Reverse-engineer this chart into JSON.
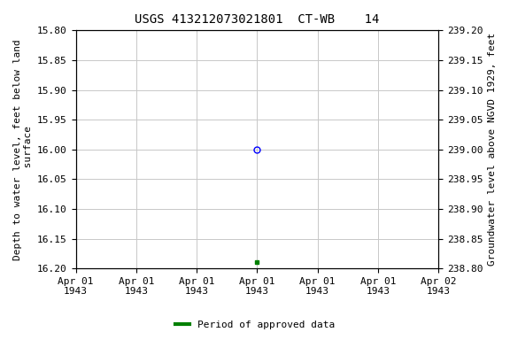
{
  "title": "USGS 413212073021801  CT-WB    14",
  "ylabel_left": "Depth to water level, feet below land\n surface",
  "ylabel_right": "Groundwater level above NGVD 1929, feet",
  "ylim_left": [
    15.8,
    16.2
  ],
  "ylim_right": [
    239.2,
    238.8
  ],
  "y_ticks_left": [
    15.8,
    15.85,
    15.9,
    15.95,
    16.0,
    16.05,
    16.1,
    16.15,
    16.2
  ],
  "y_ticks_right": [
    239.2,
    239.15,
    239.1,
    239.05,
    239.0,
    238.95,
    238.9,
    238.85,
    238.8
  ],
  "y_ticks_right_labels": [
    "239.20",
    "239.15",
    "239.10",
    "239.05",
    "239.00",
    "238.95",
    "238.90",
    "238.85",
    "238.80"
  ],
  "data_circle": {
    "y": 16.0,
    "color": "#0000ff",
    "marker": "o",
    "facecolor": "none",
    "markersize": 5
  },
  "data_square": {
    "y": 16.19,
    "color": "#008000",
    "marker": "s",
    "markersize": 3
  },
  "x_tick_labels": [
    "Apr 01\n1943",
    "Apr 01\n1943",
    "Apr 01\n1943",
    "Apr 01\n1943",
    "Apr 01\n1943",
    "Apr 01\n1943",
    "Apr 02\n1943"
  ],
  "background_color": "#ffffff",
  "grid_color": "#c8c8c8",
  "legend_label": "Period of approved data",
  "legend_color": "#008000",
  "font_family": "monospace",
  "title_fontsize": 10,
  "tick_fontsize": 8,
  "label_fontsize": 8
}
